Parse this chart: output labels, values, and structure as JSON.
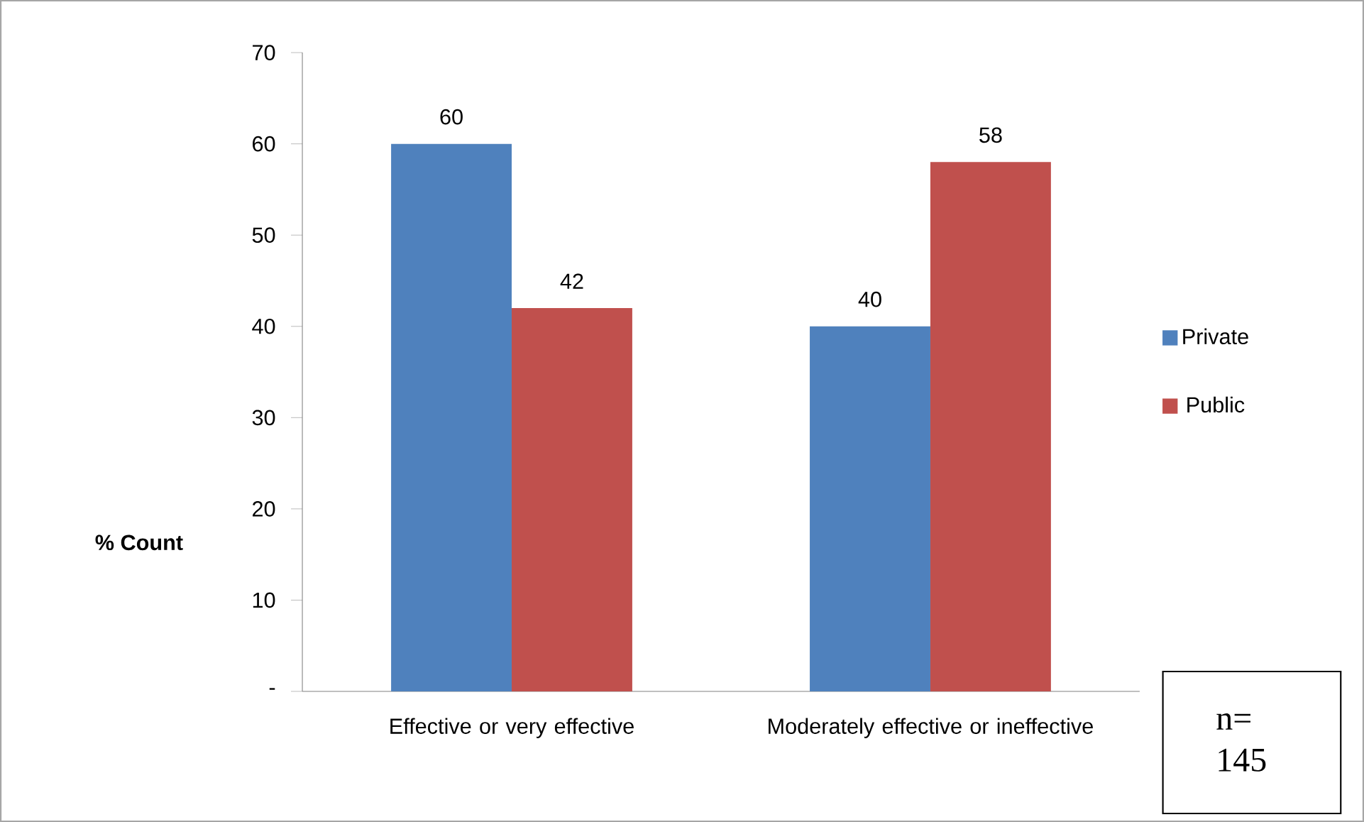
{
  "chart_data": {
    "type": "bar",
    "ylabel": "% Count",
    "categories": [
      "Effective or very effective",
      "Moderately effective or ineffective"
    ],
    "series": [
      {
        "name": "Private",
        "color": "#4f81bd",
        "values": [
          60,
          40
        ],
        "value_labels": [
          "60",
          "40"
        ]
      },
      {
        "name": "Public",
        "color": "#c0504d",
        "values": [
          42,
          58
        ],
        "value_labels": [
          "42",
          "58"
        ]
      }
    ],
    "ylim": [
      0,
      70
    ],
    "yticks": [
      {
        "value": 0,
        "label": "-"
      },
      10,
      20,
      30,
      40,
      50,
      60,
      70
    ],
    "grid": false,
    "legend": "right",
    "annotations": [
      "n= 145"
    ]
  }
}
